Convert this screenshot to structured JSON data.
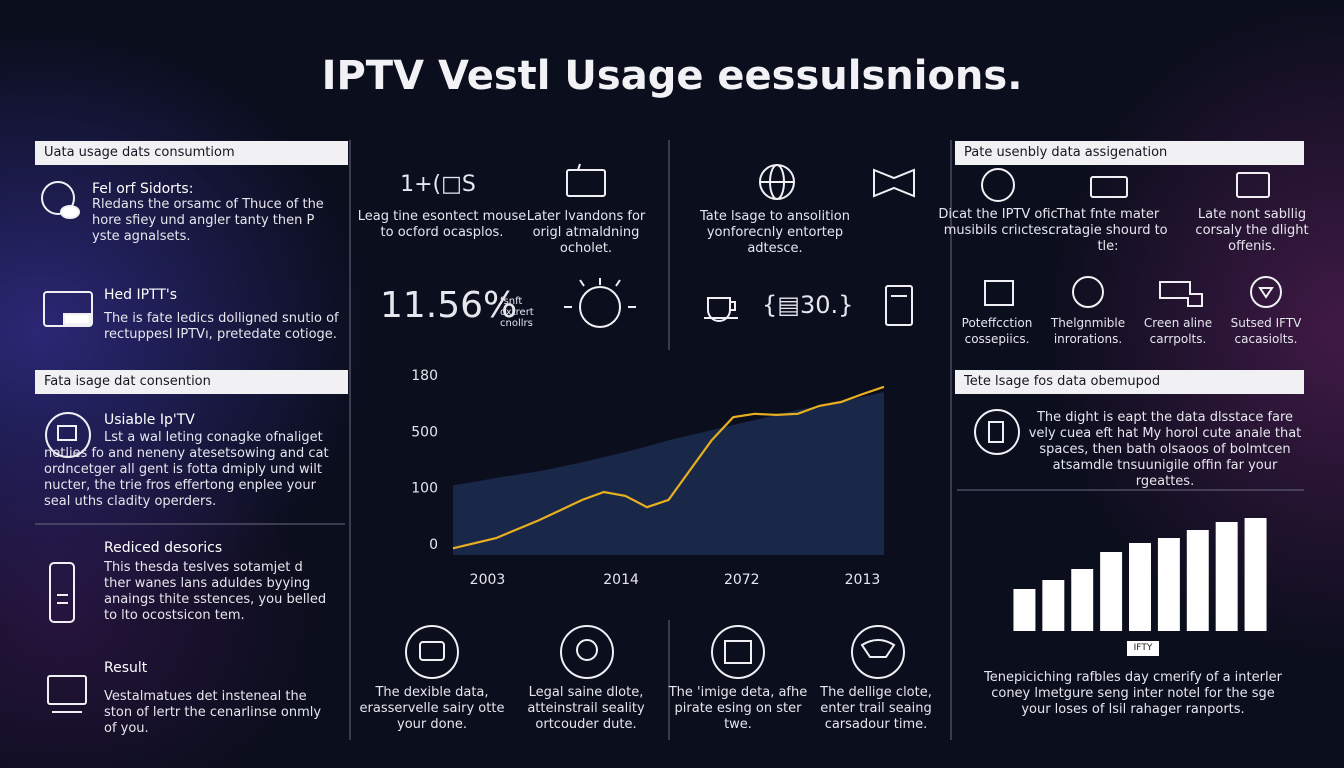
{
  "title": "IPTV Vestl Usage eessulsnions.",
  "left": {
    "sections": [
      {
        "header": "Uata usage dats consumtiom",
        "items": [
          {
            "title": "Fel orf Sidorts:",
            "text": "Rledans the orsamc of Thuce of the hore sfiey und angler tanty then P yste agnalsets."
          },
          {
            "title": "Hed IPTT's",
            "text": "The is fate ledics dolligned snutio of rectuppesl IPTVı, pretedate cotioge."
          }
        ]
      },
      {
        "header": "Fata isage dat consention",
        "items": [
          {
            "title": "Usiable Ip'TV",
            "text": "Lst a wal leting conagke ofnaliget netlies fo and neneny atesetsowing and cat ordncetger all gent is fotta dmiply und wilt nucter, the trie fros effertong enplee your seal uths cladity operders."
          },
          {
            "title": "Rediced desorics",
            "text": "This thesda teslves sotamjet d ther wanes lans aduldes byying anaings thite sstences, you belled to lto ocostsicon tem."
          },
          {
            "title": "Result",
            "text": "Vestalmatues det insteneal the ston of lertr the cenarlinse onmly of you."
          }
        ]
      }
    ]
  },
  "middle": {
    "icon_text": "1+(□S",
    "features": [
      "Leag tine esontect mouse to ocford ocasplos.",
      "Later lvandons for origl atmaldning ocholet.",
      "Tate lsage to ansolition yonforecnly entortep adtesce."
    ],
    "stat": {
      "value": "11.56%",
      "note": "fsnft oxtrert cnollrs"
    },
    "counter": "{▤30.}",
    "bottom": [
      "The dexible data, erasservelle sairy otte your done.",
      "Legal saine dlote, atteinstrail seality ortcouder dute.",
      "The 'imige deta, afhe pirate esing on ster twe.",
      "The dellige clote, enter trail seaing carsadour time."
    ]
  },
  "right": {
    "header": "Pate usenbly data assigenation",
    "row1": [
      "Dicat the IPTV ofic musibils criıctes.",
      "That fnte mater cratagie shourd to tle:",
      "Late nont sabllig corsaly the dlight offenis."
    ],
    "row2": [
      "Poteffcction cossepiics.",
      "Thelgnmible inrorations.",
      "Creen aline carrpolts.",
      "Sutsed IFTV cacasiolts."
    ],
    "header2": "Tete lsage fos data obemupod",
    "text": "The dight is eapt the data dlsstace fare vely cuea eft hat My horol cute anale that spaces, then bath olsaoos of bolmtcen atsamdle tnsuunigile offin far your rgeattes.",
    "caption": "Tenepiciching rafbles day cmerify of a interler coney lmetgure seng inter notel for the sge your loses of lsil rahager ranports."
  },
  "chart_data": [
    {
      "type": "line",
      "x": [
        0,
        5,
        10,
        15,
        20,
        25,
        30,
        35,
        40,
        45,
        50,
        55,
        60,
        65,
        70,
        75,
        80,
        85,
        90,
        95,
        100
      ],
      "series": [
        {
          "type": "area",
          "color": "#1b2a4e",
          "values": [
            104,
            110,
            117,
            123,
            129,
            137,
            145,
            154,
            163,
            173,
            184,
            193,
            202,
            211,
            220,
            229,
            238,
            245,
            252,
            261,
            270
          ]
        },
        {
          "type": "line",
          "color": "#e8b020",
          "values": [
            -8,
            1,
            10,
            26,
            42,
            60,
            78,
            92,
            85,
            65,
            78,
            131,
            184,
            225,
            231,
            229,
            231,
            245,
            252,
            266,
            279
          ]
        }
      ],
      "xlim": [
        0,
        100
      ],
      "xticks": [
        {
          "value": 8,
          "label": "2003"
        },
        {
          "value": 39,
          "label": "2014"
        },
        {
          "value": 67,
          "label": "2072"
        },
        {
          "value": 95,
          "label": "2013"
        }
      ],
      "ylim": [
        -20,
        300
      ],
      "yticks": [
        0,
        100,
        {
          "value": 200,
          "label": "500"
        },
        {
          "value": 300,
          "label": "180"
        }
      ],
      "grid": false
    },
    {
      "type": "bar",
      "categories": [
        null,
        null,
        null,
        null,
        null,
        null,
        null,
        null,
        null
      ],
      "values": [
        42,
        51,
        62,
        79,
        88,
        93,
        101,
        109,
        113
      ],
      "color": "#ffffff",
      "ylim": [
        0,
        120
      ],
      "xlabel": "IFTY"
    }
  ]
}
